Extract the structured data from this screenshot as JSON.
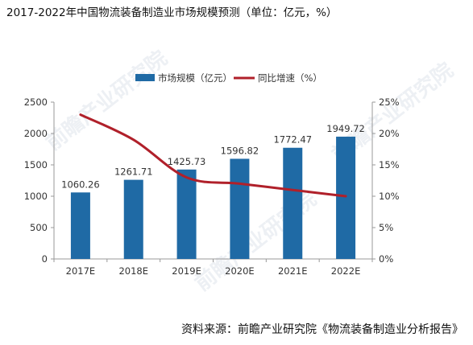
{
  "title": "2017-2022年中国物流装备制造业市场规模预测（单位：亿元，%）",
  "source": "资料来源：前瞻产业研究院《物流装备制造业分析报告》",
  "watermark": "前瞻产业研究院",
  "colors": {
    "bar": "#1f6aa5",
    "line": "#b0202a",
    "axis": "#999999",
    "text": "#333333"
  },
  "chart_data": {
    "type": "bar",
    "categories": [
      "2017E",
      "2018E",
      "2019E",
      "2020E",
      "2021E",
      "2022E"
    ],
    "series": [
      {
        "name": "市场规模（亿元）",
        "type": "bar",
        "axis": "left",
        "values": [
          1060.26,
          1261.71,
          1425.73,
          1596.82,
          1772.47,
          1949.72
        ]
      },
      {
        "name": "同比增速（%）",
        "type": "line",
        "axis": "right",
        "values": [
          23,
          19,
          13,
          12,
          11,
          10
        ]
      }
    ],
    "data_labels": [
      "1060.26",
      "1261.71",
      "1425.73",
      "1596.82",
      "1772.47",
      "1949.72"
    ],
    "y_left": {
      "ylim": [
        0,
        2500
      ],
      "ticks": [
        "0",
        "500",
        "1000",
        "1500",
        "2000",
        "2500"
      ]
    },
    "y_right": {
      "ylim": [
        0,
        25
      ],
      "ticks": [
        "0%",
        "5%",
        "10%",
        "15%",
        "20%",
        "25%"
      ]
    },
    "legend_position": "top-center",
    "grid": false
  }
}
